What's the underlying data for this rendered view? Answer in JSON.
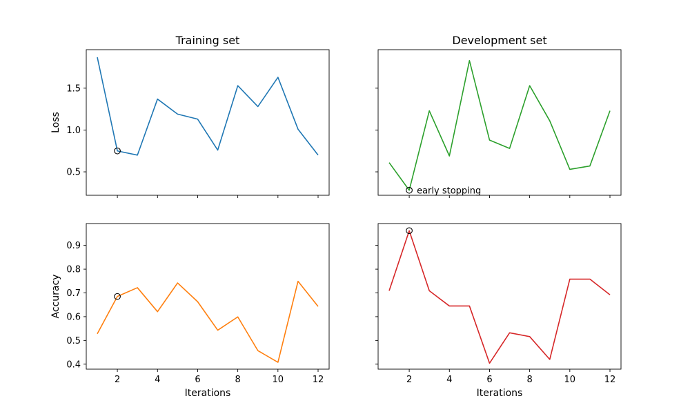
{
  "chart_data": [
    {
      "id": "train-loss",
      "type": "line",
      "title": "Training set",
      "xlabel": "",
      "ylabel": "Loss",
      "x": [
        1,
        2,
        3,
        4,
        5,
        6,
        7,
        8,
        9,
        10,
        11,
        12
      ],
      "series": [
        {
          "values": [
            1.87,
            0.75,
            0.7,
            1.37,
            1.19,
            1.13,
            0.76,
            1.53,
            1.28,
            1.63,
            1.01,
            0.7
          ],
          "color": "#1f77b4"
        }
      ],
      "marker_point": {
        "x": 2,
        "y": 0.75
      },
      "xlim": [
        0.45,
        12.55
      ],
      "ylim": [
        0.22,
        1.96
      ],
      "xticks": [
        2,
        4,
        6,
        8,
        10,
        12
      ],
      "xtick_labels_visible": false,
      "yticks": [
        0.5,
        1.0,
        1.5
      ],
      "ytick_labels": [
        "0.5",
        "1.0",
        "1.5"
      ],
      "grid": false
    },
    {
      "id": "dev-loss",
      "type": "line",
      "title": "Development set",
      "xlabel": "",
      "ylabel": "",
      "x": [
        1,
        2,
        3,
        4,
        5,
        6,
        7,
        8,
        9,
        10,
        11,
        12
      ],
      "series": [
        {
          "values": [
            0.61,
            0.28,
            1.23,
            0.69,
            1.83,
            0.88,
            0.78,
            1.53,
            1.11,
            0.53,
            0.57,
            1.23
          ],
          "color": "#2ca02c"
        }
      ],
      "marker_point": {
        "x": 2,
        "y": 0.28
      },
      "annotation": "early stopping",
      "xlim": [
        0.45,
        12.55
      ],
      "ylim": [
        0.22,
        1.96
      ],
      "xticks": [
        2,
        4,
        6,
        8,
        10,
        12
      ],
      "xtick_labels_visible": false,
      "yticks": [
        0.5,
        1.0,
        1.5
      ],
      "ytick_labels_visible": false,
      "grid": false
    },
    {
      "id": "train-acc",
      "type": "line",
      "title": "",
      "xlabel": "Iterations",
      "ylabel": "Accuracy",
      "x": [
        1,
        2,
        3,
        4,
        5,
        6,
        7,
        8,
        9,
        10,
        11,
        12
      ],
      "series": [
        {
          "values": [
            0.528,
            0.685,
            0.722,
            0.621,
            0.742,
            0.663,
            0.543,
            0.599,
            0.457,
            0.408,
            0.749,
            0.643
          ],
          "color": "#ff7f0e"
        }
      ],
      "marker_point": {
        "x": 2,
        "y": 0.685
      },
      "xlim": [
        0.45,
        12.55
      ],
      "ylim": [
        0.379,
        0.992
      ],
      "xticks": [
        2,
        4,
        6,
        8,
        10,
        12
      ],
      "xtick_labels": [
        "2",
        "4",
        "6",
        "8",
        "10",
        "12"
      ],
      "yticks": [
        0.4,
        0.5,
        0.6,
        0.7,
        0.8,
        0.9
      ],
      "ytick_labels": [
        "0.4",
        "0.5",
        "0.6",
        "0.7",
        "0.8",
        "0.9"
      ],
      "grid": false
    },
    {
      "id": "dev-acc",
      "type": "line",
      "title": "",
      "xlabel": "Iterations",
      "ylabel": "",
      "x": [
        1,
        2,
        3,
        4,
        5,
        6,
        7,
        8,
        9,
        10,
        11,
        12
      ],
      "series": [
        {
          "values": [
            0.709,
            0.962,
            0.709,
            0.645,
            0.645,
            0.404,
            0.532,
            0.516,
            0.42,
            0.758,
            0.758,
            0.692
          ],
          "color": "#d62728"
        }
      ],
      "marker_point": {
        "x": 2,
        "y": 0.962
      },
      "xlim": [
        0.45,
        12.55
      ],
      "ylim": [
        0.379,
        0.992
      ],
      "xticks": [
        2,
        4,
        6,
        8,
        10,
        12
      ],
      "xtick_labels": [
        "2",
        "4",
        "6",
        "8",
        "10",
        "12"
      ],
      "yticks": [
        0.4,
        0.5,
        0.6,
        0.7,
        0.8,
        0.9
      ],
      "ytick_labels_visible": false,
      "grid": false
    }
  ]
}
